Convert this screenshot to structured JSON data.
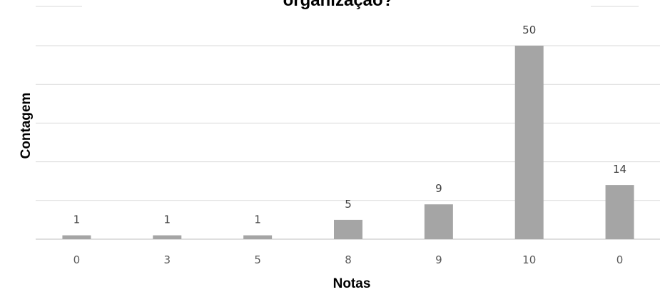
{
  "chart_data": {
    "type": "bar",
    "title": "organização?",
    "xlabel": "Notas",
    "ylabel": "Contagem",
    "categories": [
      "0",
      "3",
      "5",
      "8",
      "9",
      "10",
      "0"
    ],
    "values": [
      1,
      1,
      1,
      5,
      9,
      50,
      14
    ],
    "ylim": [
      0,
      50
    ],
    "grid": true,
    "legend": "none",
    "colors": {
      "bar": "#a5a5a5",
      "grid": "#d9d9d9"
    }
  }
}
